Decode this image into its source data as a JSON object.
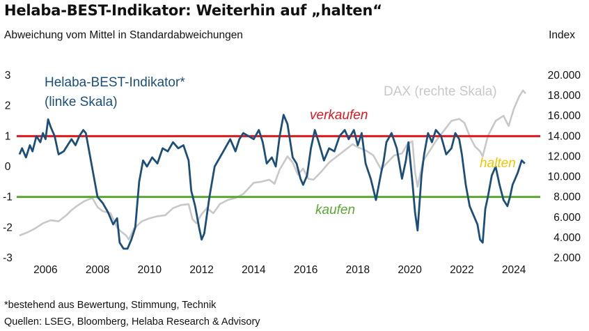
{
  "header": {
    "title": "Helaba-BEST-Indikator: Weiterhin auf „halten“",
    "subtitle": "Abweichung vom Mittel in Standardabweichungen",
    "right_unit": "Index"
  },
  "footer": {
    "footnote": "*bestehend aus Bewertung, Stimmung, Technik",
    "sources": "Quellen: LSEG, Bloomberg, Helaba Research & Advisory"
  },
  "colors": {
    "best": "#1b4f7a",
    "dax": "#c8c8c8",
    "sell": "#e0161d",
    "buy": "#5aa832",
    "hold": "#f5c400"
  },
  "chart_data": {
    "type": "line",
    "title": "Helaba-BEST-Indikator: Weiterhin auf „halten“",
    "ylabel_left": "Abweichung vom Mittel in Standardabweichungen",
    "ylabel_right": "Index",
    "xlim": [
      2005,
      2024.8
    ],
    "ylim_left": [
      -3,
      3
    ],
    "ylim_right": [
      2000,
      20000
    ],
    "x_ticks": [
      "2006",
      "2008",
      "2010",
      "2012",
      "2014",
      "2016",
      "2018",
      "2020",
      "2022",
      "2024"
    ],
    "y_left_ticks": [
      "-3",
      "-2",
      "-1",
      "0",
      "1",
      "2",
      "3"
    ],
    "y_right_ticks": [
      "2.000",
      "4.000",
      "6.000",
      "8.000",
      "10.000",
      "12.000",
      "14.000",
      "16.000",
      "18.000",
      "20.000"
    ],
    "thresholds": [
      {
        "label": "verkaufen",
        "axis": "left",
        "value": 1
      },
      {
        "label": "kaufen",
        "axis": "left",
        "value": -1
      }
    ],
    "annotations": [
      "verkaufen",
      "kaufen",
      "halten"
    ],
    "series": [
      {
        "name": "Helaba-BEST-Indikator* (linke Skala)",
        "axis": "left",
        "x": [
          2005.0,
          2005.1,
          2005.25,
          2005.4,
          2005.5,
          2005.65,
          2005.8,
          2005.9,
          2006.0,
          2006.1,
          2006.2,
          2006.35,
          2006.5,
          2006.7,
          2006.85,
          2007.0,
          2007.15,
          2007.3,
          2007.45,
          2007.55,
          2007.7,
          2007.85,
          2008.0,
          2008.2,
          2008.4,
          2008.6,
          2008.75,
          2008.85,
          2009.0,
          2009.15,
          2009.3,
          2009.45,
          2009.6,
          2009.75,
          2009.9,
          2010.1,
          2010.3,
          2010.5,
          2010.7,
          2010.9,
          2011.1,
          2011.3,
          2011.5,
          2011.6,
          2011.75,
          2011.9,
          2012.0,
          2012.1,
          2012.3,
          2012.5,
          2012.7,
          2012.9,
          2013.1,
          2013.3,
          2013.45,
          2013.6,
          2013.8,
          2014.0,
          2014.2,
          2014.35,
          2014.5,
          2014.7,
          2014.85,
          2015.0,
          2015.15,
          2015.3,
          2015.5,
          2015.65,
          2015.8,
          2015.9,
          2016.05,
          2016.2,
          2016.35,
          2016.5,
          2016.7,
          2016.9,
          2017.1,
          2017.3,
          2017.5,
          2017.65,
          2017.85,
          2018.0,
          2018.15,
          2018.3,
          2018.5,
          2018.7,
          2018.9,
          2019.0,
          2019.1,
          2019.3,
          2019.5,
          2019.7,
          2019.85,
          2019.95,
          2020.1,
          2020.2,
          2020.3,
          2020.45,
          2020.55,
          2020.7,
          2020.85,
          2021.0,
          2021.2,
          2021.4,
          2021.6,
          2021.75,
          2021.9,
          2022.0,
          2022.15,
          2022.3,
          2022.45,
          2022.6,
          2022.7,
          2022.8,
          2022.9,
          2023.0,
          2023.15,
          2023.3,
          2023.45,
          2023.6,
          2023.75,
          2023.85,
          2023.95,
          2024.05,
          2024.15,
          2024.3,
          2024.42
        ],
        "y": [
          0.4,
          0.6,
          0.3,
          0.7,
          0.5,
          1.0,
          0.8,
          1.1,
          0.9,
          1.55,
          1.3,
          1.0,
          0.4,
          0.5,
          0.7,
          0.9,
          0.7,
          1.0,
          1.2,
          1.1,
          0.4,
          -0.3,
          -1.0,
          -1.2,
          -1.5,
          -1.9,
          -1.7,
          -2.5,
          -2.7,
          -2.7,
          -2.4,
          -2.0,
          -0.5,
          0.2,
          0.0,
          0.3,
          0.1,
          0.6,
          0.5,
          0.8,
          0.6,
          0.7,
          0.2,
          -0.8,
          -1.3,
          -2.0,
          -2.4,
          -2.2,
          -1.0,
          0.0,
          0.3,
          0.6,
          0.9,
          0.5,
          0.9,
          1.1,
          1.0,
          0.9,
          1.2,
          0.8,
          0.1,
          0.3,
          0.0,
          1.0,
          1.7,
          1.4,
          0.3,
          0.1,
          -0.4,
          -0.6,
          -0.3,
          0.6,
          1.2,
          0.8,
          0.2,
          0.6,
          0.5,
          1.0,
          1.2,
          0.9,
          1.2,
          0.7,
          1.1,
          0.1,
          -0.4,
          -1.1,
          -0.2,
          0.2,
          0.8,
          1.1,
          0.6,
          -0.4,
          0.2,
          0.8,
          -0.5,
          -1.5,
          -2.1,
          -0.3,
          0.4,
          1.1,
          0.8,
          1.2,
          1.0,
          0.4,
          0.6,
          1.1,
          0.9,
          0.4,
          -0.6,
          -1.3,
          -1.6,
          -1.9,
          -2.4,
          -2.5,
          -1.4,
          -1.0,
          -0.3,
          0.0,
          -0.6,
          -1.1,
          -1.3,
          -1.0,
          -0.6,
          -0.4,
          -0.2,
          0.2,
          0.1
        ]
      },
      {
        "name": "DAX (rechte Skala)",
        "axis": "right",
        "x": [
          2005.0,
          2005.3,
          2005.6,
          2005.9,
          2006.2,
          2006.5,
          2006.8,
          2007.0,
          2007.2,
          2007.5,
          2007.8,
          2008.0,
          2008.2,
          2008.5,
          2008.75,
          2008.9,
          2009.1,
          2009.2,
          2009.4,
          2009.7,
          2010.0,
          2010.3,
          2010.6,
          2010.9,
          2011.2,
          2011.5,
          2011.65,
          2011.8,
          2012.0,
          2012.2,
          2012.45,
          2012.7,
          2013.0,
          2013.3,
          2013.6,
          2014.0,
          2014.3,
          2014.6,
          2014.8,
          2015.0,
          2015.3,
          2015.5,
          2015.7,
          2015.9,
          2016.1,
          2016.3,
          2016.6,
          2016.9,
          2017.2,
          2017.5,
          2017.8,
          2018.0,
          2018.3,
          2018.6,
          2018.9,
          2019.1,
          2019.4,
          2019.7,
          2019.9,
          2020.1,
          2020.2,
          2020.3,
          2020.5,
          2020.8,
          2021.0,
          2021.3,
          2021.6,
          2021.9,
          2022.1,
          2022.3,
          2022.5,
          2022.7,
          2022.8,
          2023.0,
          2023.3,
          2023.6,
          2023.8,
          2024.0,
          2024.2,
          2024.35,
          2024.45
        ],
        "y": [
          4200,
          4500,
          4900,
          5400,
          5700,
          5600,
          6200,
          6700,
          7100,
          7600,
          7900,
          7000,
          6600,
          6400,
          5000,
          4600,
          4200,
          3800,
          4900,
          5600,
          5900,
          6100,
          6200,
          6900,
          7200,
          7300,
          5800,
          5400,
          6300,
          6900,
          6400,
          7300,
          7700,
          7900,
          8300,
          9400,
          9500,
          9700,
          9300,
          10700,
          12000,
          11400,
          10200,
          10800,
          9800,
          9700,
          10500,
          11400,
          12000,
          12600,
          13200,
          12900,
          12600,
          12100,
          10700,
          11300,
          12100,
          12300,
          13200,
          13500,
          10500,
          9000,
          11500,
          12700,
          13500,
          14500,
          15500,
          15700,
          15300,
          14000,
          13000,
          12500,
          12000,
          14000,
          15500,
          16000,
          15000,
          16700,
          17900,
          18500,
          18200
        ]
      }
    ]
  }
}
